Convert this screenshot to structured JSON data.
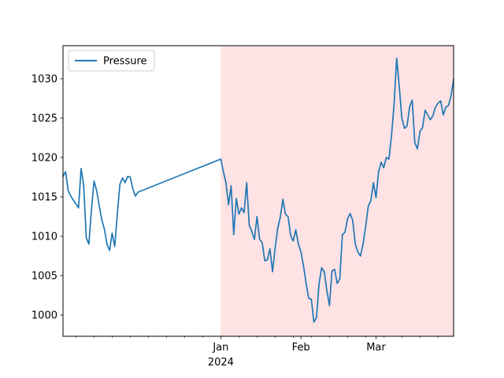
{
  "chart_data": {
    "type": "line",
    "title": "",
    "xlabel": "",
    "ylabel": "",
    "legend": {
      "entries": [
        "Pressure"
      ],
      "placement": "top-left"
    },
    "grid": false,
    "ylim": [
      997.3,
      1034.2
    ],
    "xlim": [
      "2023-11-01",
      "2024-03-31"
    ],
    "x_tick_labels": [
      {
        "date": "2024-01-01",
        "label": "Jan",
        "sublabel": "2024"
      },
      {
        "date": "2024-02-01",
        "label": "Feb"
      },
      {
        "date": "2024-03-01",
        "label": "Mar"
      }
    ],
    "y_ticks": [
      1000,
      1005,
      1010,
      1015,
      1020,
      1025,
      1030
    ],
    "shaded_region": {
      "start": "2024-01-01",
      "end": "2024-03-31",
      "color": "#ffe2e4"
    },
    "series": [
      {
        "name": "Pressure",
        "color": "#1f77b4",
        "points": [
          [
            "2023-11-01",
            1017.6
          ],
          [
            "2023-11-02",
            1018.2
          ],
          [
            "2023-11-03",
            1015.8
          ],
          [
            "2023-11-04",
            1015.1
          ],
          [
            "2023-11-05",
            1014.6
          ],
          [
            "2023-11-06",
            1014.1
          ],
          [
            "2023-11-07",
            1013.6
          ],
          [
            "2023-11-08",
            1018.6
          ],
          [
            "2023-11-09",
            1016.4
          ],
          [
            "2023-11-10",
            1009.8
          ],
          [
            "2023-11-11",
            1009.0
          ],
          [
            "2023-11-12",
            1013.4
          ],
          [
            "2023-11-13",
            1017.0
          ],
          [
            "2023-11-14",
            1015.8
          ],
          [
            "2023-11-15",
            1013.9
          ],
          [
            "2023-11-16",
            1012.1
          ],
          [
            "2023-11-17",
            1010.9
          ],
          [
            "2023-11-18",
            1009.0
          ],
          [
            "2023-11-19",
            1008.2
          ],
          [
            "2023-11-20",
            1010.4
          ],
          [
            "2023-11-21",
            1008.7
          ],
          [
            "2023-11-22",
            1012.8
          ],
          [
            "2023-11-23",
            1016.6
          ],
          [
            "2023-11-24",
            1017.4
          ],
          [
            "2023-11-25",
            1016.8
          ],
          [
            "2023-11-26",
            1017.6
          ],
          [
            "2023-11-27",
            1017.5
          ],
          [
            "2023-11-28",
            1016.0
          ],
          [
            "2023-11-29",
            1015.1
          ],
          [
            "2023-11-30",
            1015.6
          ],
          [
            "2024-01-01",
            1019.8
          ],
          [
            "2024-01-02",
            1018.2
          ],
          [
            "2024-01-03",
            1016.8
          ],
          [
            "2024-01-04",
            1014.0
          ],
          [
            "2024-01-05",
            1016.4
          ],
          [
            "2024-01-06",
            1010.2
          ],
          [
            "2024-01-07",
            1014.8
          ],
          [
            "2024-01-08",
            1012.8
          ],
          [
            "2024-01-09",
            1013.6
          ],
          [
            "2024-01-10",
            1013.0
          ],
          [
            "2024-01-11",
            1016.8
          ],
          [
            "2024-01-12",
            1011.4
          ],
          [
            "2024-01-13",
            1010.6
          ],
          [
            "2024-01-14",
            1009.6
          ],
          [
            "2024-01-15",
            1012.5
          ],
          [
            "2024-01-16",
            1009.6
          ],
          [
            "2024-01-17",
            1009.2
          ],
          [
            "2024-01-18",
            1006.9
          ],
          [
            "2024-01-19",
            1007.0
          ],
          [
            "2024-01-20",
            1008.4
          ],
          [
            "2024-01-21",
            1005.5
          ],
          [
            "2024-01-22",
            1008.5
          ],
          [
            "2024-01-23",
            1011.0
          ],
          [
            "2024-01-24",
            1012.4
          ],
          [
            "2024-01-25",
            1014.7
          ],
          [
            "2024-01-26",
            1012.8
          ],
          [
            "2024-01-27",
            1012.5
          ],
          [
            "2024-01-28",
            1010.1
          ],
          [
            "2024-01-29",
            1009.4
          ],
          [
            "2024-01-30",
            1010.8
          ],
          [
            "2024-01-31",
            1009.0
          ],
          [
            "2024-02-01",
            1008.0
          ],
          [
            "2024-02-02",
            1006.2
          ],
          [
            "2024-02-03",
            1004.0
          ],
          [
            "2024-02-04",
            1002.1
          ],
          [
            "2024-02-05",
            1002.0
          ],
          [
            "2024-02-06",
            999.1
          ],
          [
            "2024-02-07",
            999.7
          ],
          [
            "2024-02-08",
            1004.0
          ],
          [
            "2024-02-09",
            1006.0
          ],
          [
            "2024-02-10",
            1005.5
          ],
          [
            "2024-02-11",
            1003.1
          ],
          [
            "2024-02-12",
            1001.2
          ],
          [
            "2024-02-13",
            1005.6
          ],
          [
            "2024-02-14",
            1005.8
          ],
          [
            "2024-02-15",
            1004.0
          ],
          [
            "2024-02-16",
            1004.6
          ],
          [
            "2024-02-17",
            1010.2
          ],
          [
            "2024-02-18",
            1010.5
          ],
          [
            "2024-02-19",
            1012.2
          ],
          [
            "2024-02-20",
            1012.9
          ],
          [
            "2024-02-21",
            1012.0
          ],
          [
            "2024-02-22",
            1009.0
          ],
          [
            "2024-02-23",
            1008.0
          ],
          [
            "2024-02-24",
            1007.5
          ],
          [
            "2024-02-25",
            1009.0
          ],
          [
            "2024-02-26",
            1011.2
          ],
          [
            "2024-02-27",
            1013.8
          ],
          [
            "2024-02-28",
            1014.5
          ],
          [
            "2024-02-29",
            1016.8
          ],
          [
            "2024-03-01",
            1014.9
          ],
          [
            "2024-03-02",
            1018.2
          ],
          [
            "2024-03-03",
            1019.4
          ],
          [
            "2024-03-04",
            1018.7
          ],
          [
            "2024-03-05",
            1020.0
          ],
          [
            "2024-03-06",
            1019.8
          ],
          [
            "2024-03-07",
            1022.8
          ],
          [
            "2024-03-08",
            1026.8
          ],
          [
            "2024-03-09",
            1032.6
          ],
          [
            "2024-03-10",
            1029.0
          ],
          [
            "2024-03-11",
            1025.0
          ],
          [
            "2024-03-12",
            1023.7
          ],
          [
            "2024-03-13",
            1024.0
          ],
          [
            "2024-03-14",
            1026.4
          ],
          [
            "2024-03-15",
            1027.3
          ],
          [
            "2024-03-16",
            1021.9
          ],
          [
            "2024-03-17",
            1021.1
          ],
          [
            "2024-03-18",
            1023.3
          ],
          [
            "2024-03-19",
            1023.8
          ],
          [
            "2024-03-20",
            1026.0
          ],
          [
            "2024-03-21",
            1025.4
          ],
          [
            "2024-03-22",
            1024.8
          ],
          [
            "2024-03-23",
            1025.3
          ],
          [
            "2024-03-24",
            1026.4
          ],
          [
            "2024-03-25",
            1026.9
          ],
          [
            "2024-03-26",
            1027.2
          ],
          [
            "2024-03-27",
            1025.4
          ],
          [
            "2024-03-28",
            1026.4
          ],
          [
            "2024-03-29",
            1026.6
          ],
          [
            "2024-03-30",
            1027.8
          ],
          [
            "2024-03-31",
            1029.9
          ]
        ]
      }
    ]
  }
}
